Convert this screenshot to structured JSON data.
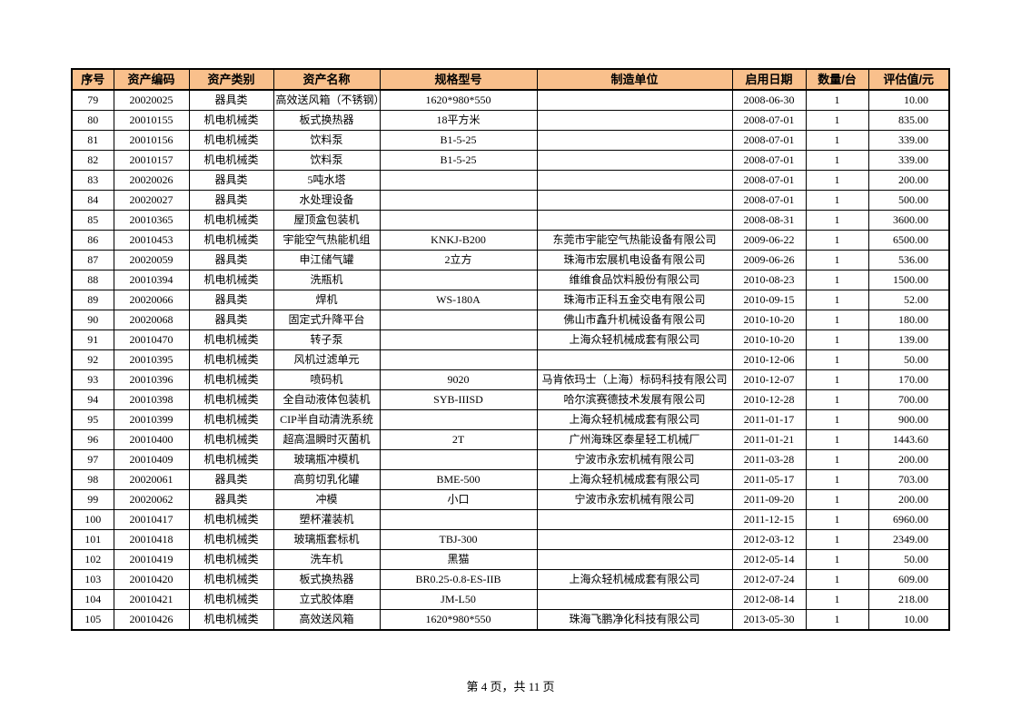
{
  "table": {
    "headers": [
      "序号",
      "资产编码",
      "资产类别",
      "资产名称",
      "规格型号",
      "制造单位",
      "启用日期",
      "数量/台",
      "评估值/元"
    ],
    "rows": [
      [
        "79",
        "20020025",
        "器具类",
        "高效送风箱（不锈钢）",
        "1620*980*550",
        null,
        "2008-06-30",
        "1",
        "10.00"
      ],
      [
        "80",
        "20010155",
        "机电机械类",
        "板式换热器",
        "18平方米",
        null,
        "2008-07-01",
        "1",
        "835.00"
      ],
      [
        "81",
        "20010156",
        "机电机械类",
        "饮料泵",
        "B1-5-25",
        null,
        "2008-07-01",
        "1",
        "339.00"
      ],
      [
        "82",
        "20010157",
        "机电机械类",
        "饮料泵",
        "B1-5-25",
        null,
        "2008-07-01",
        "1",
        "339.00"
      ],
      [
        "83",
        "20020026",
        "器具类",
        "5吨水塔",
        null,
        null,
        "2008-07-01",
        "1",
        "200.00"
      ],
      [
        "84",
        "20020027",
        "器具类",
        "水处理设备",
        null,
        null,
        "2008-07-01",
        "1",
        "500.00"
      ],
      [
        "85",
        "20010365",
        "机电机械类",
        "屋顶盒包装机",
        null,
        null,
        "2008-08-31",
        "1",
        "3600.00"
      ],
      [
        "86",
        "20010453",
        "机电机械类",
        "宇能空气热能机组",
        "KNKJ-B200",
        "东莞市宇能空气热能设备有限公司",
        "2009-06-22",
        "1",
        "6500.00"
      ],
      [
        "87",
        "20020059",
        "器具类",
        "申江储气罐",
        "2立方",
        "珠海市宏展机电设备有限公司",
        "2009-06-26",
        "1",
        "536.00"
      ],
      [
        "88",
        "20010394",
        "机电机械类",
        "洗瓶机",
        null,
        "维维食品饮料股份有限公司",
        "2010-08-23",
        "1",
        "1500.00"
      ],
      [
        "89",
        "20020066",
        "器具类",
        "焊机",
        "WS-180A",
        "珠海市正科五金交电有限公司",
        "2010-09-15",
        "1",
        "52.00"
      ],
      [
        "90",
        "20020068",
        "器具类",
        "固定式升降平台",
        null,
        "佛山市鑫升机械设备有限公司",
        "2010-10-20",
        "1",
        "180.00"
      ],
      [
        "91",
        "20010470",
        "机电机械类",
        "转子泵",
        null,
        "上海众轻机械成套有限公司",
        "2010-10-20",
        "1",
        "139.00"
      ],
      [
        "92",
        "20010395",
        "机电机械类",
        "风机过滤单元",
        null,
        null,
        "2010-12-06",
        "1",
        "50.00"
      ],
      [
        "93",
        "20010396",
        "机电机械类",
        "喷码机",
        "9020",
        "马肯依玛士（上海）标码科技有限公司",
        "2010-12-07",
        "1",
        "170.00"
      ],
      [
        "94",
        "20010398",
        "机电机械类",
        "全自动液体包装机",
        "SYB-IIISD",
        "哈尔滨赛德技术发展有限公司",
        "2010-12-28",
        "1",
        "700.00"
      ],
      [
        "95",
        "20010399",
        "机电机械类",
        "CIP半自动清洗系统",
        null,
        "上海众轻机械成套有限公司",
        "2011-01-17",
        "1",
        "900.00"
      ],
      [
        "96",
        "20010400",
        "机电机械类",
        "超高温瞬时灭菌机",
        "2T",
        "广州海珠区泰星轻工机械厂",
        "2011-01-21",
        "1",
        "1443.60"
      ],
      [
        "97",
        "20010409",
        "机电机械类",
        "玻璃瓶冲模机",
        null,
        "宁波市永宏机械有限公司",
        "2011-03-28",
        "1",
        "200.00"
      ],
      [
        "98",
        "20020061",
        "器具类",
        "高剪切乳化罐",
        "BME-500",
        "上海众轻机械成套有限公司",
        "2011-05-17",
        "1",
        "703.00"
      ],
      [
        "99",
        "20020062",
        "器具类",
        "冲模",
        "小口",
        "宁波市永宏机械有限公司",
        "2011-09-20",
        "1",
        "200.00"
      ],
      [
        "100",
        "20010417",
        "机电机械类",
        "塑杯灌装机",
        null,
        null,
        "2011-12-15",
        "1",
        "6960.00"
      ],
      [
        "101",
        "20010418",
        "机电机械类",
        "玻璃瓶套标机",
        "TBJ-300",
        null,
        "2012-03-12",
        "1",
        "2349.00"
      ],
      [
        "102",
        "20010419",
        "机电机械类",
        "洗车机",
        "黑猫",
        null,
        "2012-05-14",
        "1",
        "50.00"
      ],
      [
        "103",
        "20010420",
        "机电机械类",
        "板式换热器",
        "BR0.25-0.8-ES-IIB",
        "上海众轻机械成套有限公司",
        "2012-07-24",
        "1",
        "609.00"
      ],
      [
        "104",
        "20010421",
        "机电机械类",
        "立式胶体磨",
        "JM-L50",
        null,
        "2012-08-14",
        "1",
        "218.00"
      ],
      [
        "105",
        "20010426",
        "机电机械类",
        "高效送风箱",
        "1620*980*550",
        "珠海飞鹏净化科技有限公司",
        "2013-05-30",
        "1",
        "10.00"
      ]
    ]
  },
  "footer": "第 4 页，共 11 页"
}
